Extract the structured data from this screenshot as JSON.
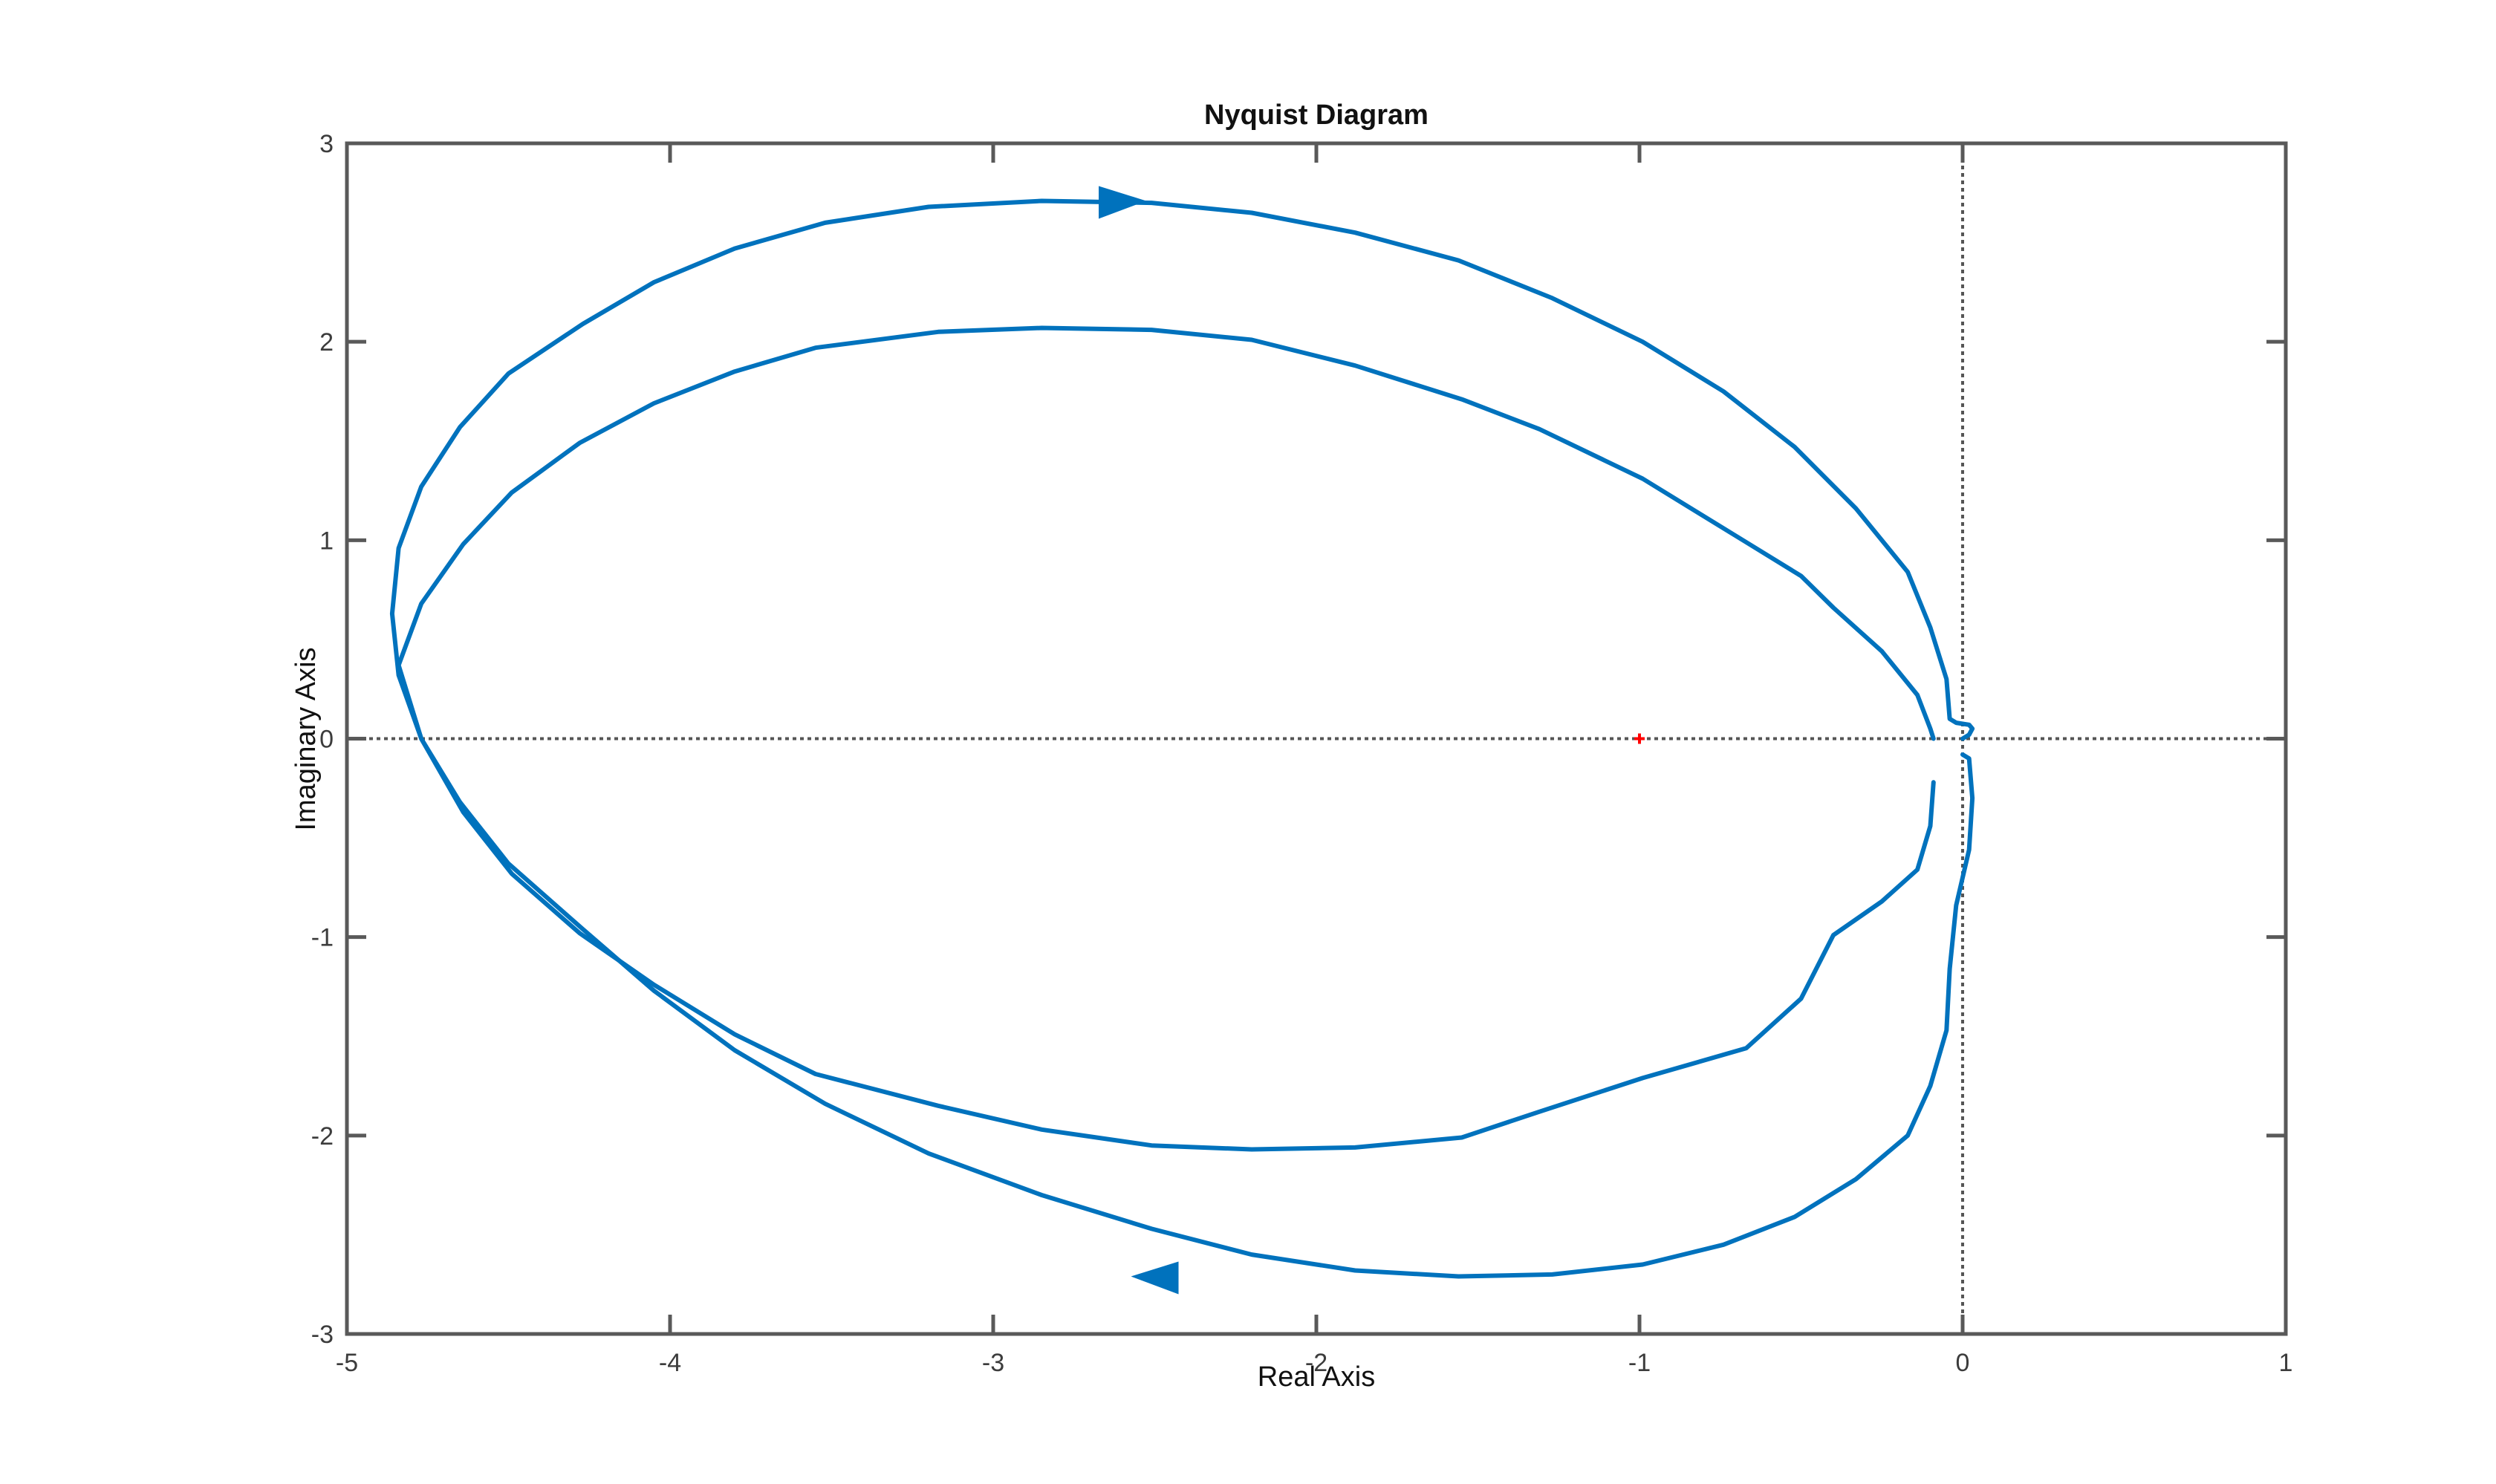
{
  "chart_data": {
    "type": "line",
    "title": "Nyquist Diagram",
    "xlabel": "Real Axis",
    "ylabel": "Imaginary Axis",
    "xlim": [
      -5,
      1
    ],
    "ylim": [
      -3,
      3
    ],
    "xticks": [
      -5,
      -4,
      -3,
      -2,
      -1,
      0,
      1
    ],
    "yticks": [
      -3,
      -2,
      -1,
      0,
      1,
      2,
      3
    ],
    "grid": false,
    "colors": {
      "series": "#0072BD",
      "critical_point": "#ff0000",
      "zero_lines": "#555555",
      "axes": "#595959"
    },
    "critical_point": {
      "x": -1,
      "y": 0,
      "marker": "+"
    },
    "series": [
      {
        "x": [
          0.0,
          0.02,
          0.03,
          0.02,
          -0.02,
          -0.04,
          -0.05,
          -0.1,
          -0.17,
          -0.33,
          -0.52,
          -0.74,
          -0.99,
          -1.27,
          -1.56,
          -1.88,
          -2.2,
          -2.51,
          -2.85,
          -3.2,
          -3.52,
          -3.8,
          -4.05,
          -4.27,
          -4.5,
          -4.65,
          -4.77,
          -4.84,
          -4.86,
          -4.84,
          -4.77,
          -4.65,
          -4.5,
          -4.27,
          -4.05,
          -3.8,
          -3.52,
          -3.2,
          -2.85,
          -2.51,
          -2.2,
          -1.88,
          -1.56,
          -1.27,
          -0.99,
          -0.74,
          -0.52,
          -0.33,
          -0.17,
          -0.1,
          -0.05,
          -0.04,
          -0.02,
          0.02,
          0.03,
          0.02,
          0.0
        ],
        "y": [
          0.0,
          0.02,
          0.05,
          0.07,
          0.08,
          0.1,
          0.3,
          0.56,
          0.84,
          1.16,
          1.47,
          1.75,
          2.0,
          2.22,
          2.41,
          2.55,
          2.65,
          2.7,
          2.71,
          2.68,
          2.6,
          2.47,
          2.3,
          2.09,
          1.84,
          1.57,
          1.27,
          0.96,
          0.63,
          0.32,
          0.0,
          -0.32,
          -0.63,
          -0.96,
          -1.27,
          -1.57,
          -1.84,
          -2.09,
          -2.3,
          -2.47,
          -2.6,
          -2.68,
          -2.71,
          -2.7,
          -2.65,
          -2.55,
          -2.41,
          -2.22,
          -2.0,
          -1.75,
          -1.47,
          -1.16,
          -0.84,
          -0.56,
          -0.3,
          -0.1,
          -0.08
        ]
      },
      {
        "x": [
          -0.09,
          -0.1,
          -0.14,
          -0.25,
          -0.4,
          -0.5,
          -0.67,
          -0.99,
          -1.31,
          -1.55,
          -1.88,
          -2.2,
          -2.51,
          -2.85,
          -3.17,
          -3.55,
          -3.8,
          -4.05,
          -4.28,
          -4.49,
          -4.64,
          -4.77,
          -4.84,
          -4.77,
          -4.64,
          -4.49,
          -4.28,
          -4.05,
          -3.8,
          -3.55,
          -3.17,
          -2.85,
          -2.51,
          -2.2,
          -1.88,
          -1.55,
          -1.31,
          -0.99,
          -0.67,
          -0.5,
          -0.4,
          -0.25,
          -0.14,
          -0.1,
          -0.09
        ],
        "y": [
          0.0,
          0.05,
          0.22,
          0.44,
          0.66,
          0.82,
          0.99,
          1.31,
          1.56,
          1.71,
          1.88,
          2.01,
          2.06,
          2.07,
          2.05,
          1.97,
          1.85,
          1.69,
          1.49,
          1.24,
          0.98,
          0.68,
          0.37,
          0.0,
          -0.37,
          -0.68,
          -0.98,
          -1.24,
          -1.49,
          -1.69,
          -1.85,
          -1.97,
          -2.05,
          -2.07,
          -2.06,
          -2.01,
          -1.88,
          -1.71,
          -1.56,
          -1.31,
          -0.99,
          -0.82,
          -0.66,
          -0.44,
          -0.22
        ]
      }
    ],
    "arrows": [
      {
        "x": -2.6,
        "y": 2.71,
        "direction": "right"
      },
      {
        "x": -2.5,
        "y": -2.71,
        "direction": "left"
      }
    ]
  }
}
